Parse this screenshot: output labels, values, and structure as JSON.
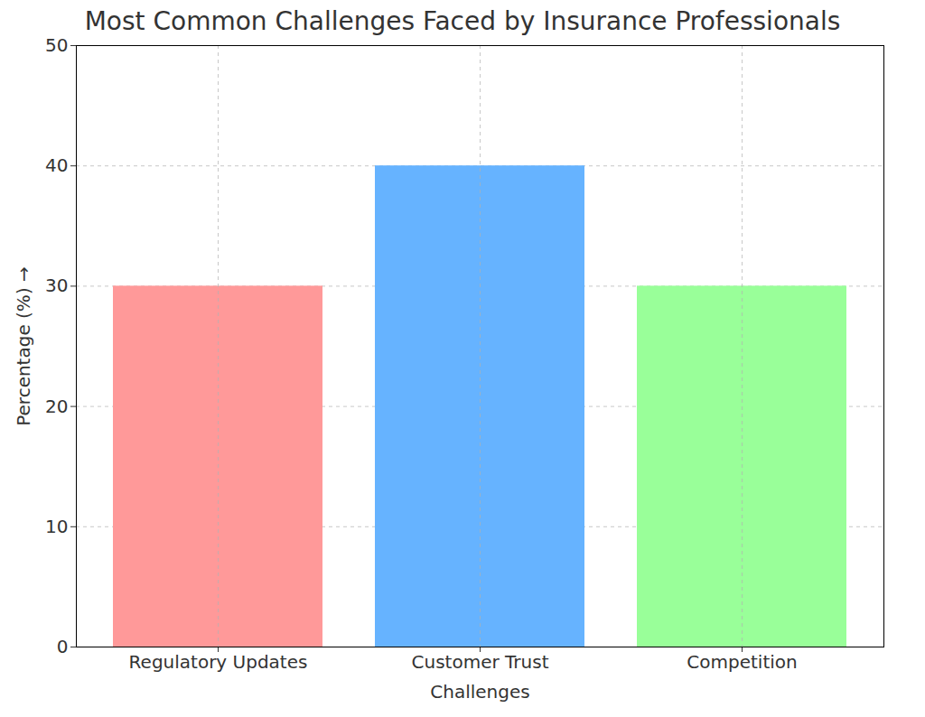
{
  "chart_data": {
    "type": "bar",
    "title": "Most Common Challenges Faced by Insurance Professionals",
    "x_label": "Challenges",
    "y_label": "Percentage (%)",
    "categories": [
      "Regulatory Updates",
      "Customer Trust",
      "Competition"
    ],
    "values": [
      30,
      40,
      30
    ],
    "colors": [
      "#ff9999",
      "#66b3ff",
      "#99ff99"
    ],
    "ylim": [
      0,
      50
    ],
    "yticks": [
      0,
      10,
      20,
      30,
      40,
      50
    ],
    "grid": true
  }
}
